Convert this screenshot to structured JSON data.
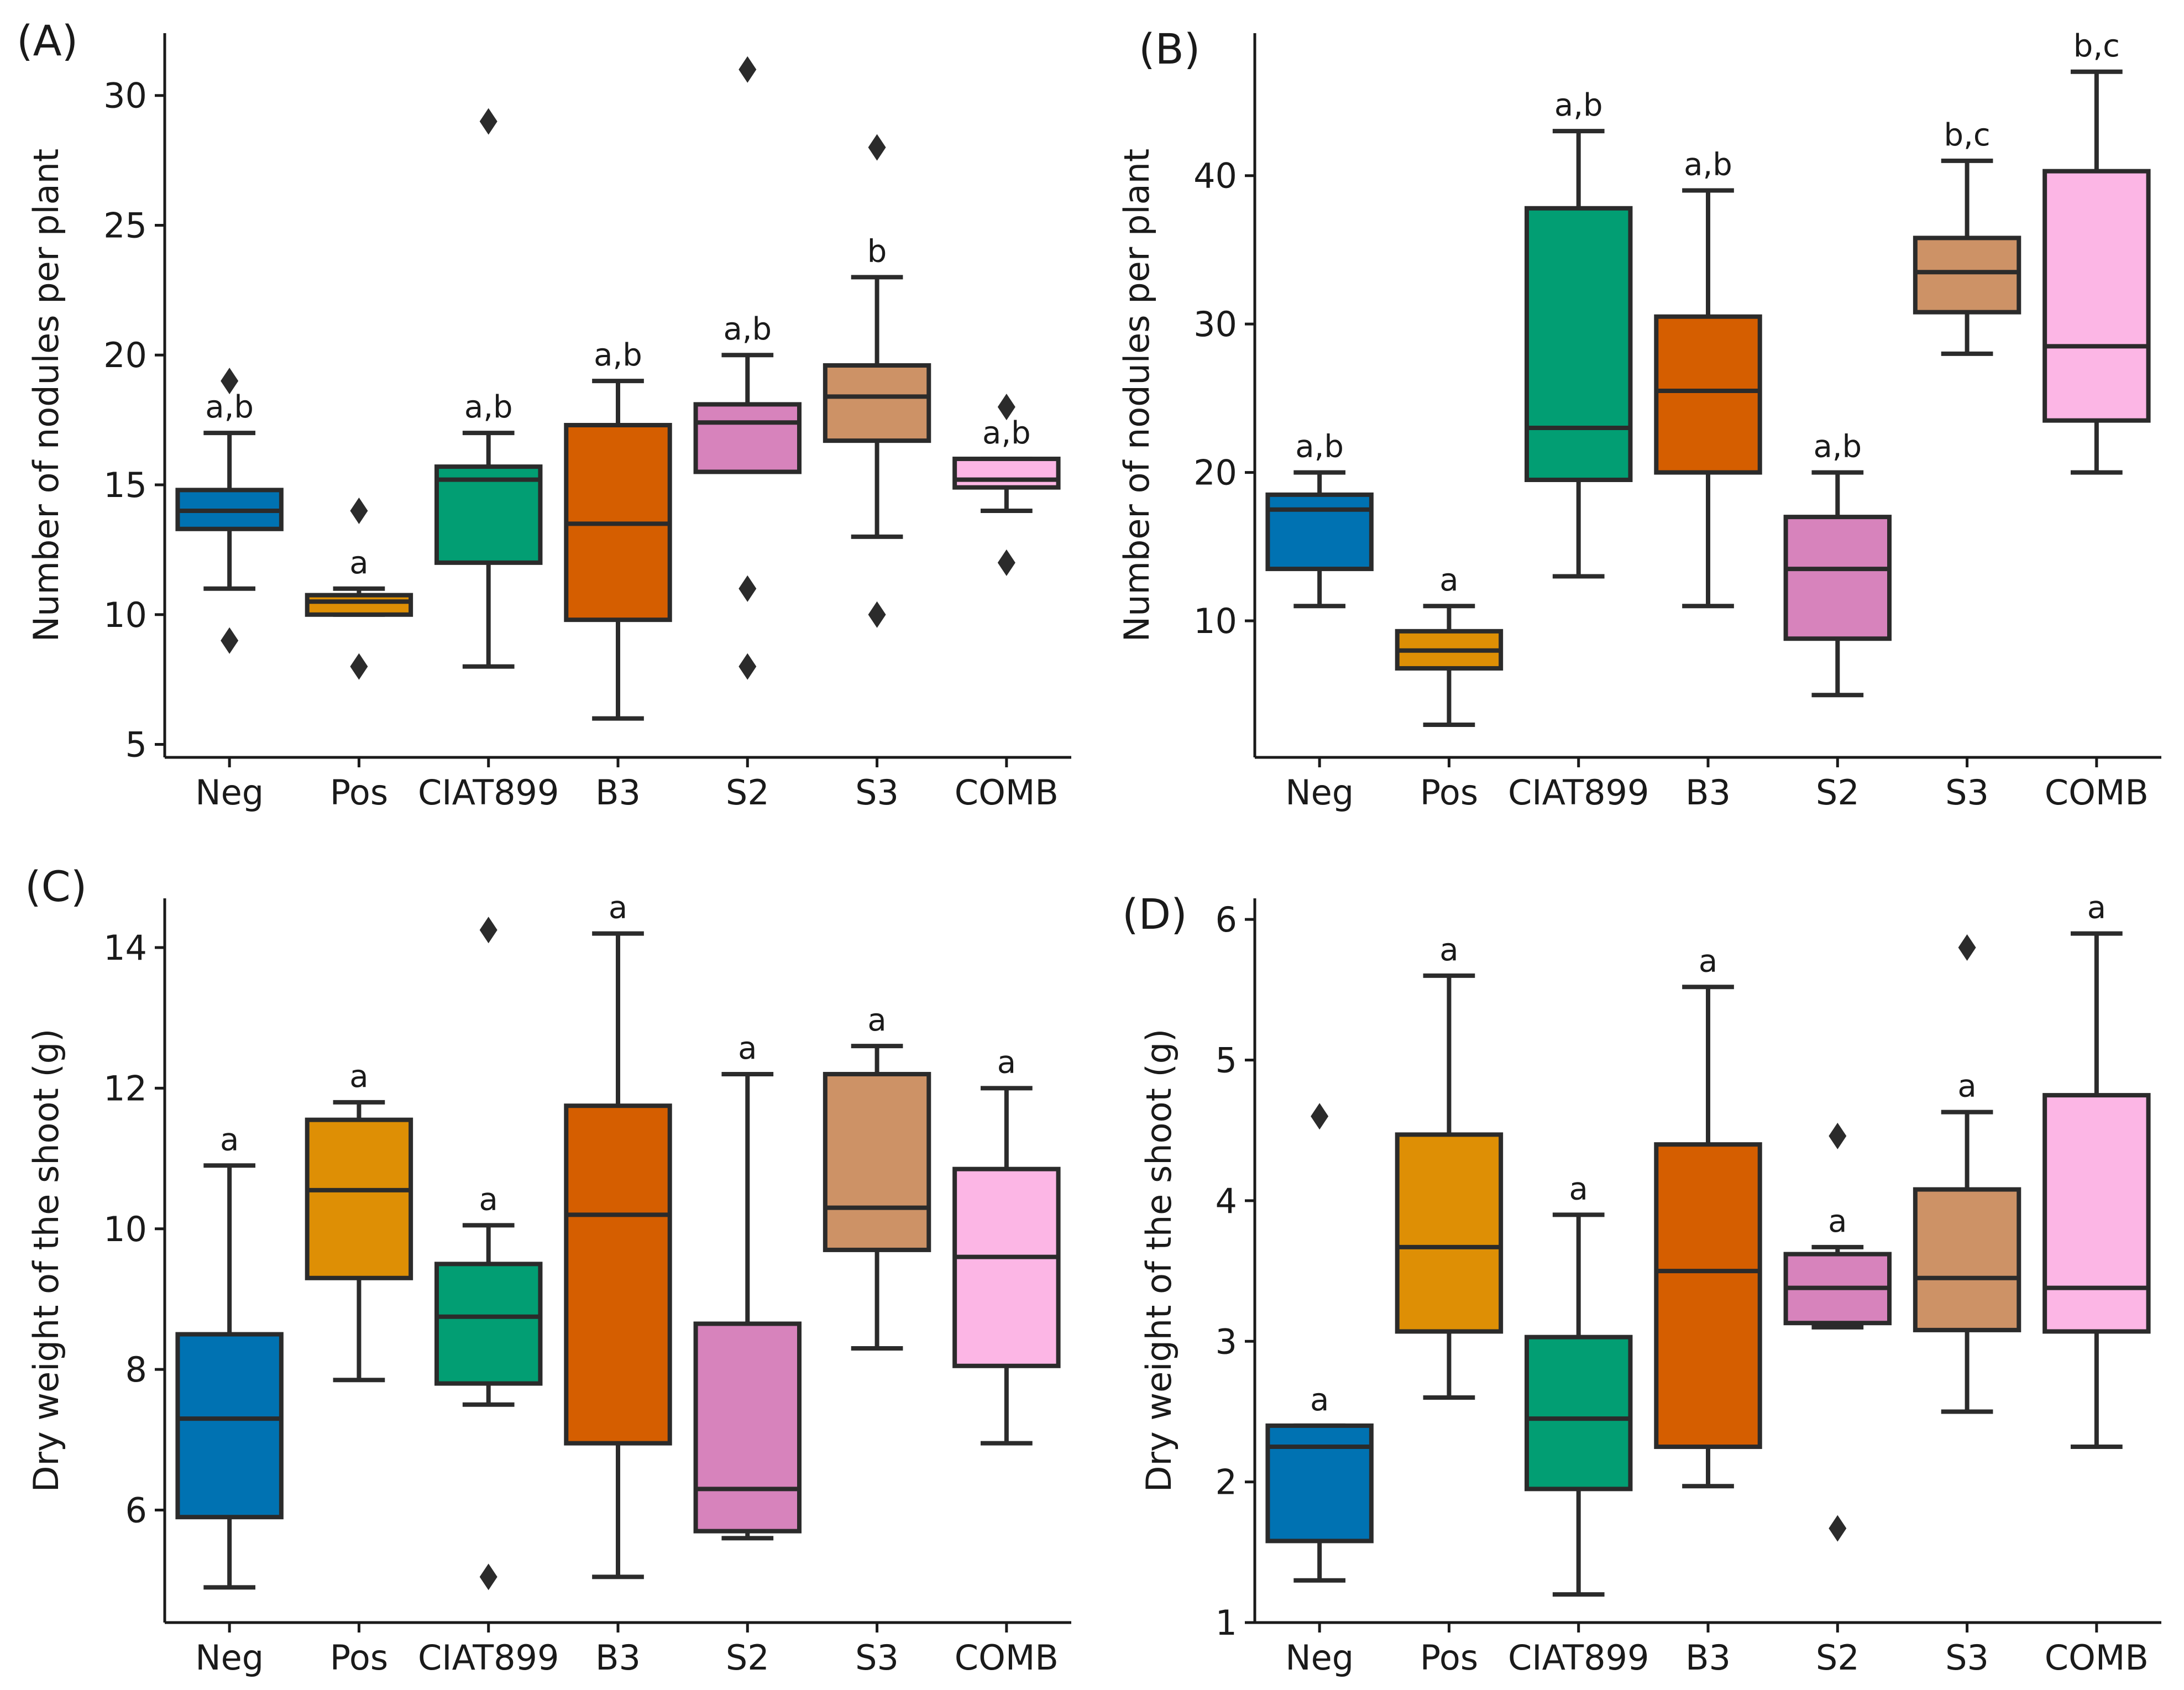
{
  "colors": {
    "Neg": "#0072b2",
    "Pos": "#de8f05",
    "CIAT899": "#029e73",
    "B3": "#d55e00",
    "S2": "#d783bc",
    "S3": "#cd9266",
    "COMB": "#fcb6e5"
  },
  "chart_data": [
    {
      "type": "box",
      "panel": "(A)",
      "ylabel": "Number of nodules per plant",
      "xlabel": "",
      "categories": [
        "Neg",
        "Pos",
        "CIAT899",
        "B3",
        "S2",
        "S3",
        "COMB"
      ],
      "ylim": [
        4.5,
        32.4
      ],
      "yticks": [
        5,
        10,
        15,
        20,
        25,
        30
      ],
      "boxes": [
        {
          "q1": 13.3,
          "median": 14.0,
          "q3": 14.8,
          "whislo": 11,
          "whishi": 17,
          "fliers": [
            9,
            19
          ],
          "sig": "a,b"
        },
        {
          "q1": 10.0,
          "median": 10.5,
          "q3": 10.75,
          "whislo": 10,
          "whishi": 11,
          "fliers": [
            8,
            14
          ],
          "sig": "a"
        },
        {
          "q1": 12.0,
          "median": 15.2,
          "q3": 15.7,
          "whislo": 8,
          "whishi": 17,
          "fliers": [
            29
          ],
          "sig": "a,b"
        },
        {
          "q1": 9.8,
          "median": 13.5,
          "q3": 17.3,
          "whislo": 6,
          "whishi": 19,
          "fliers": [],
          "sig": "a,b"
        },
        {
          "q1": 15.5,
          "median": 17.4,
          "q3": 18.1,
          "whislo": 15.5,
          "whishi": 20,
          "fliers": [
            11,
            8,
            31
          ],
          "sig": "a,b"
        },
        {
          "q1": 16.7,
          "median": 18.4,
          "q3": 19.6,
          "whislo": 13,
          "whishi": 23,
          "fliers": [
            10,
            28
          ],
          "sig": "b"
        },
        {
          "q1": 14.9,
          "median": 15.2,
          "q3": 16.0,
          "whislo": 14,
          "whishi": 16,
          "fliers": [
            12,
            18
          ],
          "sig": "a,b"
        }
      ]
    },
    {
      "type": "box",
      "panel": "(B)",
      "ylabel": "Number of nodules per plant",
      "xlabel": "",
      "categories": [
        "Neg",
        "Pos",
        "CIAT899",
        "B3",
        "S2",
        "S3",
        "COMB"
      ],
      "ylim": [
        0.8,
        49.6
      ],
      "yticks": [
        10,
        20,
        30,
        40
      ],
      "boxes": [
        {
          "q1": 13.5,
          "median": 17.5,
          "q3": 18.5,
          "whislo": 11,
          "whishi": 20,
          "fliers": [],
          "sig": "a,b"
        },
        {
          "q1": 6.8,
          "median": 8.0,
          "q3": 9.3,
          "whislo": 3,
          "whishi": 11,
          "fliers": [],
          "sig": "a"
        },
        {
          "q1": 19.5,
          "median": 23.0,
          "q3": 37.8,
          "whislo": 13,
          "whishi": 43,
          "fliers": [],
          "sig": "a,b"
        },
        {
          "q1": 20.0,
          "median": 25.5,
          "q3": 30.5,
          "whislo": 11,
          "whishi": 39,
          "fliers": [],
          "sig": "a,b"
        },
        {
          "q1": 8.8,
          "median": 13.5,
          "q3": 17.0,
          "whislo": 5,
          "whishi": 20,
          "fliers": [],
          "sig": "a,b"
        },
        {
          "q1": 30.8,
          "median": 33.5,
          "q3": 35.8,
          "whislo": 28,
          "whishi": 41,
          "fliers": [],
          "sig": "b,c"
        },
        {
          "q1": 23.5,
          "median": 28.5,
          "q3": 40.3,
          "whislo": 20,
          "whishi": 47,
          "fliers": [],
          "sig": "b,c"
        }
      ]
    },
    {
      "type": "box",
      "panel": "(C)",
      "ylabel": "Dry weight of the shoot (g)",
      "xlabel": "",
      "categories": [
        "Neg",
        "Pos",
        "CIAT899",
        "B3",
        "S2",
        "S3",
        "COMB"
      ],
      "ylim": [
        4.4,
        14.7
      ],
      "yticks": [
        6,
        8,
        10,
        12,
        14
      ],
      "boxes": [
        {
          "q1": 5.9,
          "median": 7.3,
          "q3": 8.5,
          "whislo": 4.9,
          "whishi": 10.9,
          "fliers": [],
          "sig": "a"
        },
        {
          "q1": 9.3,
          "median": 10.55,
          "q3": 11.55,
          "whislo": 7.85,
          "whishi": 11.8,
          "fliers": [],
          "sig": "a"
        },
        {
          "q1": 7.8,
          "median": 8.75,
          "q3": 9.5,
          "whislo": 7.5,
          "whishi": 10.05,
          "fliers": [
            5.05,
            14.25
          ],
          "sig": "a"
        },
        {
          "q1": 6.95,
          "median": 10.2,
          "q3": 11.75,
          "whislo": 5.05,
          "whishi": 14.2,
          "fliers": [],
          "sig": "a"
        },
        {
          "q1": 5.7,
          "median": 6.3,
          "q3": 8.65,
          "whislo": 5.6,
          "whishi": 12.2,
          "fliers": [],
          "sig": "a"
        },
        {
          "q1": 9.7,
          "median": 10.3,
          "q3": 12.2,
          "whislo": 8.3,
          "whishi": 12.6,
          "fliers": [],
          "sig": "a"
        },
        {
          "q1": 8.05,
          "median": 9.6,
          "q3": 10.85,
          "whislo": 6.95,
          "whishi": 12.0,
          "fliers": [],
          "sig": "a"
        }
      ]
    },
    {
      "type": "box",
      "panel": "(D)",
      "ylabel": "Dry weight of the shoot (g)",
      "xlabel": "",
      "categories": [
        "Neg",
        "Pos",
        "CIAT899",
        "B3",
        "S2",
        "S3",
        "COMB"
      ],
      "ylim": [
        1.0,
        6.15
      ],
      "yticks": [
        1,
        2,
        3,
        4,
        5,
        6
      ],
      "boxes": [
        {
          "q1": 1.58,
          "median": 2.25,
          "q3": 2.4,
          "whislo": 1.3,
          "whishi": 2.4,
          "fliers": [
            4.6
          ],
          "sig": "a"
        },
        {
          "q1": 3.07,
          "median": 3.67,
          "q3": 4.47,
          "whislo": 2.6,
          "whishi": 5.6,
          "fliers": [],
          "sig": "a"
        },
        {
          "q1": 1.95,
          "median": 2.45,
          "q3": 3.03,
          "whislo": 1.2,
          "whishi": 3.9,
          "fliers": [],
          "sig": "a"
        },
        {
          "q1": 2.25,
          "median": 3.5,
          "q3": 4.4,
          "whislo": 1.97,
          "whishi": 5.52,
          "fliers": [],
          "sig": "a"
        },
        {
          "q1": 3.13,
          "median": 3.38,
          "q3": 3.62,
          "whislo": 3.1,
          "whishi": 3.67,
          "fliers": [
            1.67,
            4.46
          ],
          "sig": "a"
        },
        {
          "q1": 3.08,
          "median": 3.45,
          "q3": 4.08,
          "whislo": 2.5,
          "whishi": 4.63,
          "fliers": [
            5.8
          ],
          "sig": "a"
        },
        {
          "q1": 3.07,
          "median": 3.38,
          "q3": 4.75,
          "whislo": 2.25,
          "whishi": 5.9,
          "fliers": [],
          "sig": "a"
        }
      ]
    }
  ]
}
